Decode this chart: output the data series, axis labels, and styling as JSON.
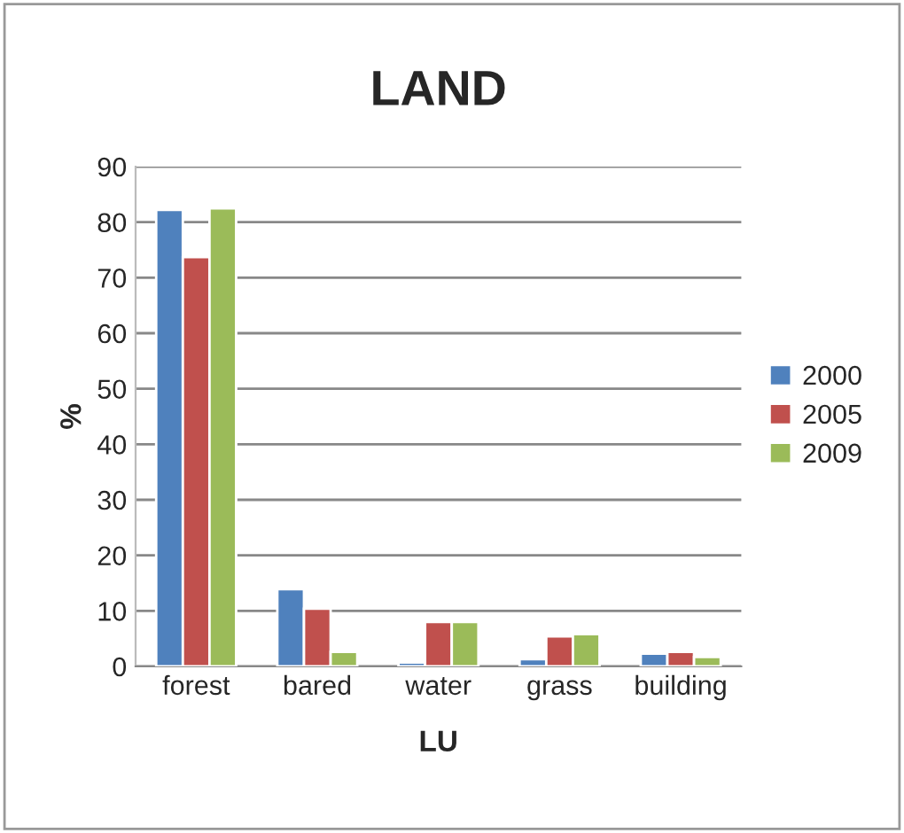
{
  "chart_data": {
    "type": "bar",
    "title": "LAND",
    "xlabel": "LU",
    "ylabel": "%",
    "categories": [
      "forest",
      "bared",
      "water",
      "grass",
      "building"
    ],
    "series": [
      {
        "name": "2000",
        "color": "#4f81bd",
        "values": [
          82.2,
          13.9,
          0.7,
          1.3,
          2.3
        ]
      },
      {
        "name": "2005",
        "color": "#c0504d",
        "values": [
          73.7,
          10.4,
          8.0,
          5.4,
          2.6
        ]
      },
      {
        "name": "2009",
        "color": "#9bbb59",
        "values": [
          82.5,
          2.6,
          8.0,
          5.8,
          1.7
        ]
      }
    ],
    "ylim": [
      0,
      90
    ],
    "yticks": [
      0,
      10,
      20,
      30,
      40,
      50,
      60,
      70,
      80,
      90
    ],
    "grid": "y",
    "legend": "right"
  }
}
